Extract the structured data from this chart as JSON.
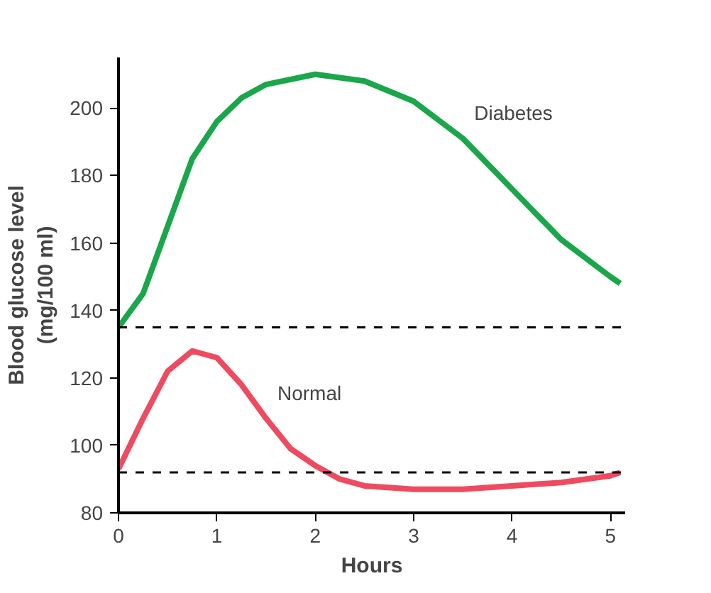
{
  "chart_data": {
    "type": "line",
    "xlabel": "Hours",
    "ylabel": "Blood glucose level\n(mg/100 ml)",
    "xlim": [
      0,
      5.15
    ],
    "ylim": [
      80,
      215
    ],
    "xticks": [
      0,
      1,
      2,
      3,
      4,
      5
    ],
    "yticks": [
      80,
      100,
      120,
      140,
      160,
      180,
      200
    ],
    "grid": false,
    "line_style": "solid",
    "marker": "none",
    "series": [
      {
        "name": "Diabetes",
        "color": "#1aa64a",
        "x": [
          0,
          0.25,
          0.5,
          0.75,
          1,
          1.25,
          1.5,
          2,
          2.5,
          3,
          3.5,
          4,
          4.5,
          5,
          5.1
        ],
        "values": [
          135,
          145,
          165,
          185,
          196,
          203,
          207,
          210,
          208,
          202,
          191,
          176,
          161,
          150,
          148
        ]
      },
      {
        "name": "Normal",
        "color": "#ee4b60",
        "x": [
          0,
          0.25,
          0.5,
          0.75,
          1,
          1.25,
          1.5,
          1.75,
          2,
          2.25,
          2.5,
          3,
          3.5,
          4,
          4.5,
          5,
          5.1
        ],
        "values": [
          93,
          108,
          122,
          128,
          126,
          118,
          108,
          99,
          94,
          90,
          88,
          87,
          87,
          88,
          89,
          91,
          92
        ]
      }
    ],
    "ref_lines": [
      {
        "axis": "y",
        "value": 135,
        "line_style": "dashed",
        "color": "#000000"
      },
      {
        "axis": "y",
        "value": 92,
        "line_style": "dashed",
        "color": "#000000"
      }
    ]
  }
}
